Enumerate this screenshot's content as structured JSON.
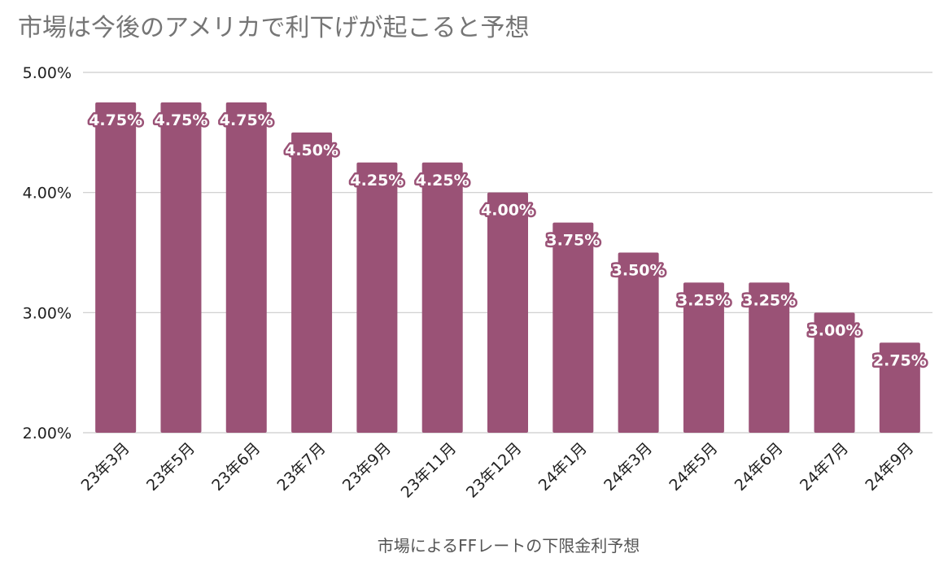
{
  "chart_data": {
    "type": "bar",
    "title": "市場は今後のアメリカで利下げが起こると予想",
    "xlabel": "市場によるFFレートの下限金利予想",
    "ylabel": "",
    "ylim": [
      2.0,
      5.0
    ],
    "yticks": [
      "2.00%",
      "3.00%",
      "4.00%",
      "5.00%"
    ],
    "ytick_values": [
      2.0,
      3.0,
      4.0,
      5.0
    ],
    "grid": true,
    "bar_color": "#9a5276",
    "categories": [
      "23年3月",
      "23年5月",
      "23年6月",
      "23年7月",
      "23年9月",
      "23年11月",
      "23年12月",
      "24年1月",
      "24年3月",
      "24年5月",
      "24年6月",
      "24年7月",
      "24年9月"
    ],
    "values": [
      4.75,
      4.75,
      4.75,
      4.5,
      4.25,
      4.25,
      4.0,
      3.75,
      3.5,
      3.25,
      3.25,
      3.0,
      2.75
    ],
    "data_labels": [
      "4.75%",
      "4.75%",
      "4.75%",
      "4.50%",
      "4.25%",
      "4.25%",
      "4.00%",
      "3.75%",
      "3.50%",
      "3.25%",
      "3.25%",
      "3.00%",
      "2.75%"
    ]
  }
}
